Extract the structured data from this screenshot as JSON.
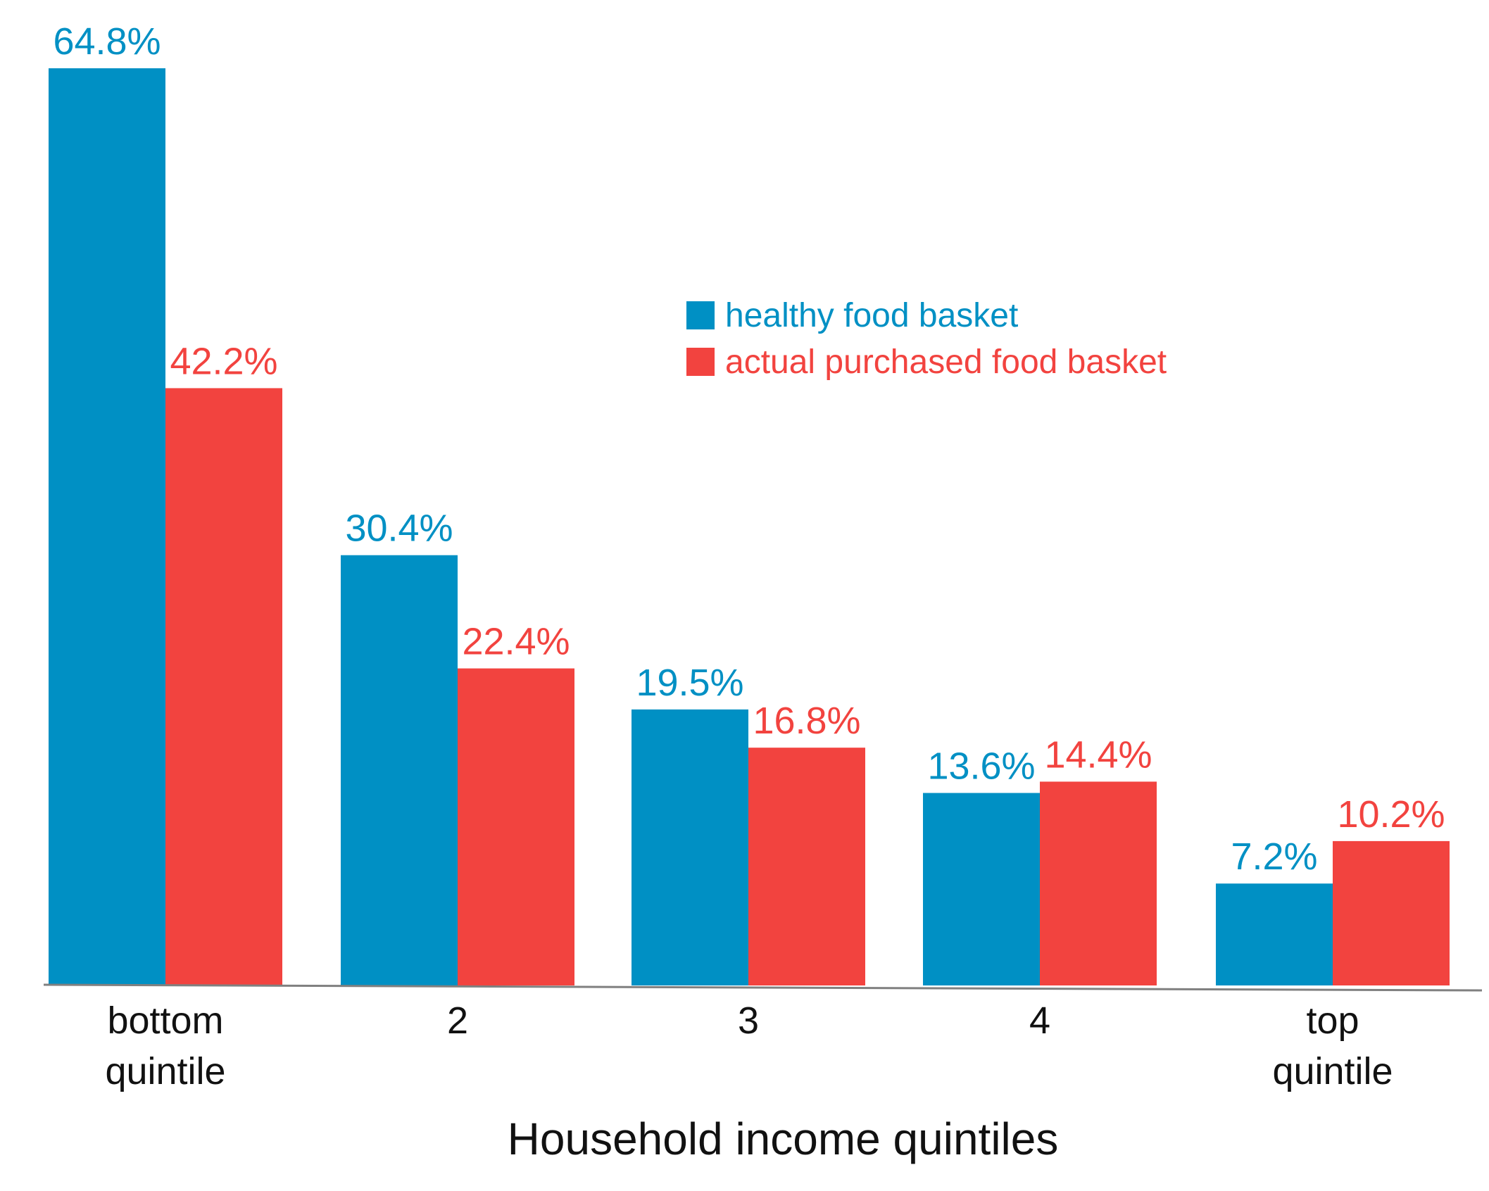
{
  "chart_data": {
    "type": "bar",
    "title": "",
    "xlabel": "Household income quintiles",
    "ylabel": "",
    "ylim": [
      0,
      70
    ],
    "grid": false,
    "legend_position": "upper-center",
    "categories": [
      [
        "bottom",
        "quintile"
      ],
      [
        "2"
      ],
      [
        "3"
      ],
      [
        "4"
      ],
      [
        "top",
        "quintile"
      ]
    ],
    "series": [
      {
        "name": "healthy food basket",
        "color": "#0090C4",
        "values": [
          64.8,
          30.4,
          19.5,
          13.6,
          7.2
        ],
        "labels": [
          "64.8%",
          "30.4%",
          "19.5%",
          "13.6%",
          "7.2%"
        ]
      },
      {
        "name": "actual purchased food basket",
        "color": "#F2433F",
        "values": [
          42.2,
          22.4,
          16.8,
          14.4,
          10.2
        ],
        "labels": [
          "42.2%",
          "22.4%",
          "16.8%",
          "14.4%",
          "10.2%"
        ]
      }
    ]
  }
}
